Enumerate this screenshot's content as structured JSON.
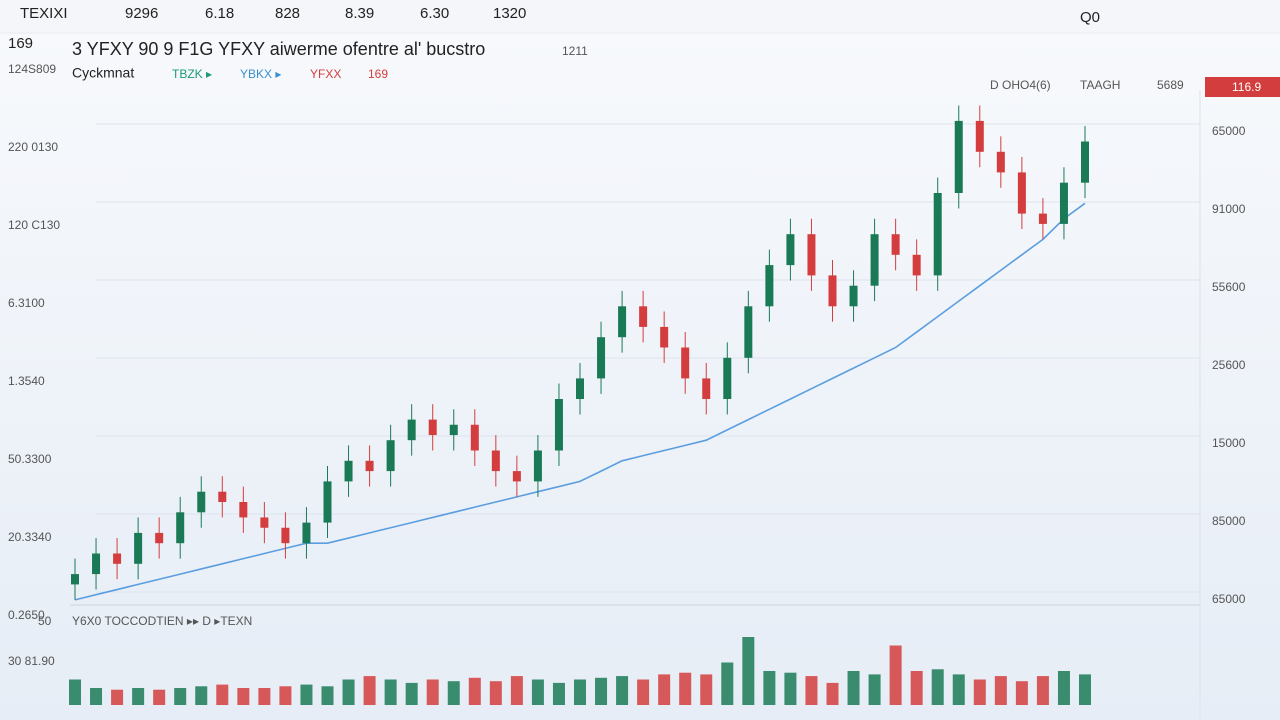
{
  "top_bar": {
    "items": [
      "TEXIXI",
      "9296",
      "6.18",
      "828",
      "8.39",
      "6.30",
      "1320"
    ],
    "right": "Q0"
  },
  "header": {
    "symbol": "169",
    "title": "3 YFXY 90 9 F1G YFXY aiwerme ofentre al' bucstro",
    "extra": "1211"
  },
  "legend": {
    "name": "Cyckmnat",
    "items": [
      "TBZK ▸",
      "YBKX ▸",
      "YFXX",
      "169"
    ]
  },
  "chart_info": {
    "interval": "D OHO4(6)",
    "label": "TAAGH",
    "value": "5689",
    "price_tag": "116.9"
  },
  "axis_labels": {
    "left": [
      "124S809",
      "220 0130",
      "120 C130",
      "6.3100",
      "1.3540",
      "50.3300",
      "20.3340",
      "0.2650"
    ],
    "right": [
      "65000",
      "91000",
      "55600",
      "25600",
      "15000",
      "85000",
      "65000"
    ]
  },
  "volume_panel": {
    "title": "Y6X0 TOCCODTIEN ▸▸ D ▸TEXN",
    "labels": [
      "50",
      "30 81.90"
    ]
  },
  "chart_data": {
    "type": "candlestick",
    "ylim": [
      0,
      100
    ],
    "up_color": "#1a7a55",
    "down_color": "#d43d3d",
    "open": [
      4,
      6,
      10,
      8,
      14,
      12,
      18,
      22,
      20,
      17,
      15,
      12,
      16,
      24,
      28,
      26,
      32,
      36,
      33,
      35,
      30,
      26,
      24,
      30,
      40,
      44,
      52,
      58,
      54,
      50,
      44,
      40,
      48,
      58,
      66,
      72,
      64,
      58,
      62,
      72,
      68,
      64,
      80,
      94,
      88,
      84,
      76,
      74,
      82
    ],
    "high": [
      9,
      13,
      13,
      17,
      17,
      21,
      25,
      25,
      23,
      20,
      18,
      19,
      27,
      31,
      31,
      35,
      39,
      39,
      38,
      38,
      33,
      29,
      33,
      43,
      47,
      55,
      61,
      61,
      57,
      53,
      47,
      51,
      61,
      69,
      75,
      75,
      67,
      65,
      75,
      75,
      71,
      83,
      97,
      97,
      91,
      87,
      79,
      85,
      93
    ],
    "low": [
      1,
      3,
      5,
      5,
      9,
      9,
      15,
      17,
      14,
      12,
      9,
      9,
      13,
      21,
      23,
      23,
      29,
      30,
      30,
      27,
      23,
      21,
      21,
      27,
      37,
      41,
      49,
      51,
      47,
      41,
      37,
      37,
      45,
      55,
      63,
      61,
      55,
      55,
      59,
      65,
      61,
      61,
      77,
      85,
      81,
      73,
      71,
      71,
      79
    ],
    "close": [
      6,
      10,
      8,
      14,
      12,
      18,
      22,
      20,
      17,
      15,
      12,
      16,
      24,
      28,
      26,
      32,
      36,
      33,
      35,
      30,
      26,
      24,
      30,
      40,
      44,
      52,
      58,
      54,
      50,
      44,
      40,
      48,
      58,
      66,
      72,
      64,
      58,
      62,
      72,
      68,
      64,
      80,
      94,
      88,
      84,
      76,
      74,
      82,
      90
    ],
    "ma": {
      "color": "#5b9ee0",
      "values": [
        1,
        2,
        3,
        4,
        5,
        6,
        7,
        8,
        9,
        10,
        11,
        12,
        12,
        13,
        14,
        15,
        16,
        17,
        18,
        19,
        20,
        21,
        22,
        23,
        24,
        26,
        28,
        29,
        30,
        31,
        32,
        34,
        36,
        38,
        40,
        42,
        44,
        46,
        48,
        50,
        53,
        56,
        59,
        62,
        65,
        68,
        71,
        75,
        78
      ]
    },
    "volume": {
      "ylim": [
        0,
        100
      ],
      "values": [
        30,
        20,
        18,
        20,
        18,
        20,
        22,
        24,
        20,
        20,
        22,
        24,
        22,
        30,
        34,
        30,
        26,
        30,
        28,
        32,
        28,
        34,
        30,
        26,
        30,
        32,
        34,
        30,
        36,
        38,
        36,
        50,
        80,
        40,
        38,
        34,
        26,
        40,
        36,
        70,
        40,
        42,
        36,
        30,
        34,
        28,
        34,
        40,
        36
      ]
    }
  }
}
